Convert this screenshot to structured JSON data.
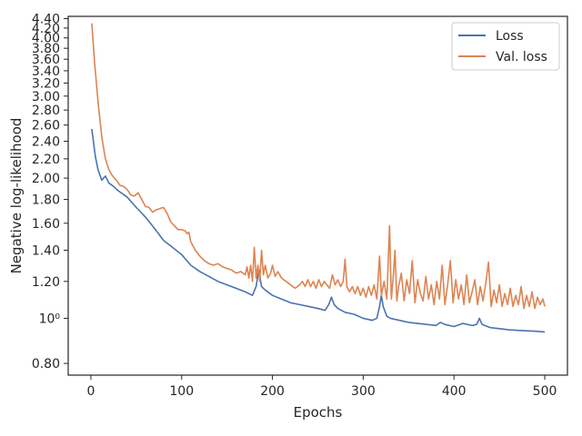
{
  "chart_data": {
    "type": "line",
    "title": "",
    "xlabel": "Epochs",
    "ylabel": "Negative log-likelihood",
    "yscale": "log",
    "xlim": [
      -25,
      525
    ],
    "ylim": [
      0.755,
      4.45
    ],
    "grid": false,
    "legend_position": "top-right",
    "x_ticks": [
      0,
      100,
      200,
      300,
      400,
      500
    ],
    "y_ticks": [
      {
        "value": 0.8,
        "label": "0.80"
      },
      {
        "value": 1.0,
        "label": "10⁰"
      },
      {
        "value": 1.2,
        "label": "1.20"
      },
      {
        "value": 1.4,
        "label": "1.40"
      },
      {
        "value": 1.6,
        "label": "1.60"
      },
      {
        "value": 1.8,
        "label": "1.80"
      },
      {
        "value": 2.0,
        "label": "2.00"
      },
      {
        "value": 2.2,
        "label": "2.20"
      },
      {
        "value": 2.4,
        "label": "2.40"
      },
      {
        "value": 2.6,
        "label": "2.60"
      },
      {
        "value": 2.8,
        "label": "2.80"
      },
      {
        "value": 3.0,
        "label": "3.00"
      },
      {
        "value": 3.2,
        "label": "3.20"
      },
      {
        "value": 3.4,
        "label": "3.40"
      },
      {
        "value": 3.6,
        "label": "3.60"
      },
      {
        "value": 3.8,
        "label": "3.80"
      },
      {
        "value": 4.0,
        "label": "4.00"
      },
      {
        "value": 4.2,
        "label": "4.20"
      },
      {
        "value": 4.4,
        "label": "4.40"
      }
    ],
    "series": [
      {
        "name": "Loss",
        "color": "#4c72b0",
        "points": [
          [
            1,
            2.55
          ],
          [
            5,
            2.22
          ],
          [
            8,
            2.08
          ],
          [
            12,
            1.98
          ],
          [
            16,
            2.02
          ],
          [
            20,
            1.95
          ],
          [
            25,
            1.92
          ],
          [
            30,
            1.88
          ],
          [
            40,
            1.82
          ],
          [
            50,
            1.73
          ],
          [
            60,
            1.65
          ],
          [
            70,
            1.56
          ],
          [
            80,
            1.47
          ],
          [
            90,
            1.42
          ],
          [
            100,
            1.37
          ],
          [
            110,
            1.3
          ],
          [
            120,
            1.26
          ],
          [
            130,
            1.23
          ],
          [
            140,
            1.2
          ],
          [
            150,
            1.18
          ],
          [
            160,
            1.16
          ],
          [
            170,
            1.14
          ],
          [
            178,
            1.12
          ],
          [
            182,
            1.17
          ],
          [
            185,
            1.27
          ],
          [
            188,
            1.17
          ],
          [
            192,
            1.15
          ],
          [
            200,
            1.12
          ],
          [
            210,
            1.1
          ],
          [
            220,
            1.08
          ],
          [
            230,
            1.07
          ],
          [
            240,
            1.06
          ],
          [
            250,
            1.05
          ],
          [
            258,
            1.04
          ],
          [
            262,
            1.07
          ],
          [
            265,
            1.11
          ],
          [
            268,
            1.07
          ],
          [
            272,
            1.05
          ],
          [
            280,
            1.03
          ],
          [
            290,
            1.02
          ],
          [
            300,
            1.0
          ],
          [
            310,
            0.99
          ],
          [
            315,
            1.0
          ],
          [
            318,
            1.06
          ],
          [
            320,
            1.12
          ],
          [
            322,
            1.06
          ],
          [
            326,
            1.01
          ],
          [
            330,
            1.0
          ],
          [
            340,
            0.99
          ],
          [
            350,
            0.98
          ],
          [
            360,
            0.975
          ],
          [
            370,
            0.97
          ],
          [
            380,
            0.965
          ],
          [
            385,
            0.98
          ],
          [
            390,
            0.97
          ],
          [
            400,
            0.96
          ],
          [
            410,
            0.975
          ],
          [
            420,
            0.965
          ],
          [
            425,
            0.97
          ],
          [
            428,
            1.0
          ],
          [
            431,
            0.97
          ],
          [
            440,
            0.955
          ],
          [
            450,
            0.95
          ],
          [
            460,
            0.945
          ],
          [
            470,
            0.942
          ],
          [
            480,
            0.94
          ],
          [
            490,
            0.938
          ],
          [
            500,
            0.935
          ]
        ]
      },
      {
        "name": "Val. loss",
        "color": "#dd8452",
        "points": [
          [
            1,
            4.3
          ],
          [
            4,
            3.55
          ],
          [
            8,
            2.9
          ],
          [
            12,
            2.45
          ],
          [
            16,
            2.2
          ],
          [
            20,
            2.08
          ],
          [
            24,
            2.02
          ],
          [
            28,
            1.98
          ],
          [
            32,
            1.93
          ],
          [
            36,
            1.92
          ],
          [
            40,
            1.89
          ],
          [
            44,
            1.84
          ],
          [
            48,
            1.83
          ],
          [
            52,
            1.86
          ],
          [
            56,
            1.8
          ],
          [
            60,
            1.74
          ],
          [
            64,
            1.73
          ],
          [
            68,
            1.69
          ],
          [
            72,
            1.71
          ],
          [
            76,
            1.72
          ],
          [
            80,
            1.73
          ],
          [
            84,
            1.68
          ],
          [
            88,
            1.61
          ],
          [
            92,
            1.58
          ],
          [
            96,
            1.55
          ],
          [
            100,
            1.55
          ],
          [
            104,
            1.54
          ],
          [
            106,
            1.52
          ],
          [
            108,
            1.53
          ],
          [
            110,
            1.46
          ],
          [
            115,
            1.4
          ],
          [
            120,
            1.36
          ],
          [
            125,
            1.33
          ],
          [
            130,
            1.31
          ],
          [
            135,
            1.3
          ],
          [
            140,
            1.31
          ],
          [
            145,
            1.29
          ],
          [
            150,
            1.28
          ],
          [
            155,
            1.27
          ],
          [
            160,
            1.25
          ],
          [
            165,
            1.26
          ],
          [
            170,
            1.24
          ],
          [
            172,
            1.29
          ],
          [
            174,
            1.22
          ],
          [
            176,
            1.3
          ],
          [
            178,
            1.2
          ],
          [
            180,
            1.42
          ],
          [
            182,
            1.22
          ],
          [
            184,
            1.3
          ],
          [
            186,
            1.2
          ],
          [
            188,
            1.4
          ],
          [
            190,
            1.24
          ],
          [
            192,
            1.3
          ],
          [
            195,
            1.22
          ],
          [
            198,
            1.25
          ],
          [
            200,
            1.3
          ],
          [
            203,
            1.23
          ],
          [
            206,
            1.26
          ],
          [
            210,
            1.22
          ],
          [
            215,
            1.2
          ],
          [
            220,
            1.18
          ],
          [
            225,
            1.16
          ],
          [
            230,
            1.18
          ],
          [
            233,
            1.2
          ],
          [
            236,
            1.17
          ],
          [
            239,
            1.21
          ],
          [
            242,
            1.17
          ],
          [
            245,
            1.2
          ],
          [
            248,
            1.16
          ],
          [
            251,
            1.21
          ],
          [
            254,
            1.17
          ],
          [
            257,
            1.2
          ],
          [
            260,
            1.18
          ],
          [
            263,
            1.16
          ],
          [
            266,
            1.24
          ],
          [
            269,
            1.18
          ],
          [
            272,
            1.21
          ],
          [
            275,
            1.17
          ],
          [
            278,
            1.2
          ],
          [
            280,
            1.34
          ],
          [
            282,
            1.17
          ],
          [
            285,
            1.14
          ],
          [
            288,
            1.17
          ],
          [
            291,
            1.13
          ],
          [
            294,
            1.17
          ],
          [
            297,
            1.12
          ],
          [
            300,
            1.16
          ],
          [
            303,
            1.11
          ],
          [
            306,
            1.17
          ],
          [
            309,
            1.12
          ],
          [
            312,
            1.18
          ],
          [
            315,
            1.1
          ],
          [
            318,
            1.36
          ],
          [
            320,
            1.12
          ],
          [
            323,
            1.2
          ],
          [
            326,
            1.1
          ],
          [
            329,
            1.58
          ],
          [
            331,
            1.1
          ],
          [
            333,
            1.22
          ],
          [
            335,
            1.4
          ],
          [
            337,
            1.09
          ],
          [
            339,
            1.17
          ],
          [
            342,
            1.25
          ],
          [
            345,
            1.09
          ],
          [
            348,
            1.21
          ],
          [
            351,
            1.13
          ],
          [
            354,
            1.33
          ],
          [
            357,
            1.08
          ],
          [
            360,
            1.21
          ],
          [
            363,
            1.13
          ],
          [
            366,
            1.09
          ],
          [
            369,
            1.23
          ],
          [
            372,
            1.1
          ],
          [
            375,
            1.18
          ],
          [
            378,
            1.07
          ],
          [
            381,
            1.2
          ],
          [
            384,
            1.1
          ],
          [
            387,
            1.3
          ],
          [
            390,
            1.07
          ],
          [
            393,
            1.18
          ],
          [
            396,
            1.33
          ],
          [
            399,
            1.08
          ],
          [
            402,
            1.21
          ],
          [
            405,
            1.1
          ],
          [
            408,
            1.18
          ],
          [
            411,
            1.07
          ],
          [
            414,
            1.24
          ],
          [
            417,
            1.08
          ],
          [
            420,
            1.14
          ],
          [
            423,
            1.21
          ],
          [
            426,
            1.07
          ],
          [
            429,
            1.17
          ],
          [
            432,
            1.09
          ],
          [
            435,
            1.19
          ],
          [
            438,
            1.32
          ],
          [
            441,
            1.06
          ],
          [
            444,
            1.15
          ],
          [
            447,
            1.08
          ],
          [
            450,
            1.18
          ],
          [
            453,
            1.06
          ],
          [
            456,
            1.13
          ],
          [
            459,
            1.07
          ],
          [
            462,
            1.16
          ],
          [
            465,
            1.06
          ],
          [
            468,
            1.12
          ],
          [
            471,
            1.07
          ],
          [
            474,
            1.17
          ],
          [
            477,
            1.05
          ],
          [
            480,
            1.12
          ],
          [
            483,
            1.06
          ],
          [
            486,
            1.14
          ],
          [
            489,
            1.05
          ],
          [
            492,
            1.11
          ],
          [
            495,
            1.07
          ],
          [
            498,
            1.1
          ],
          [
            500,
            1.06
          ]
        ]
      }
    ]
  }
}
